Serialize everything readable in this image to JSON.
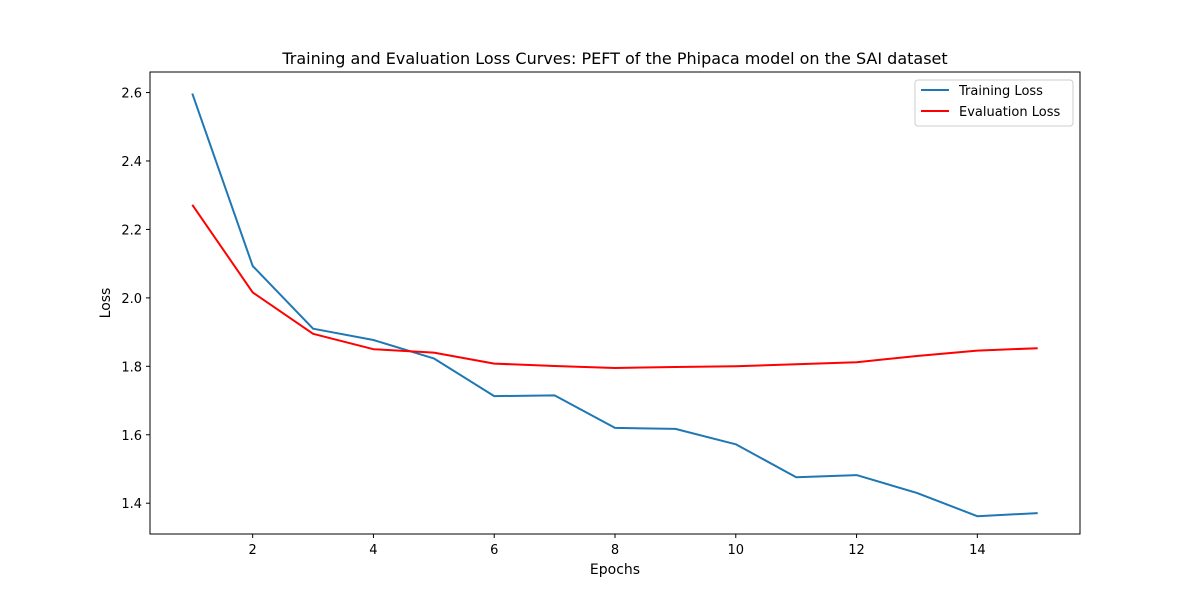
{
  "chart_data": {
    "type": "line",
    "title": "Training and Evaluation Loss Curves: PEFT of the Phipaca model on the SAI dataset",
    "xlabel": "Epochs",
    "ylabel": "Loss",
    "x": [
      1,
      2,
      3,
      4,
      5,
      6,
      7,
      8,
      9,
      10,
      11,
      12,
      13,
      14,
      15
    ],
    "xlim": [
      0.3,
      15.7
    ],
    "ylim": [
      1.31,
      2.66
    ],
    "xticks": [
      2,
      4,
      6,
      8,
      10,
      12,
      14
    ],
    "yticks": [
      1.4,
      1.6,
      1.8,
      2.0,
      2.2,
      2.4,
      2.6
    ],
    "ytick_labels": [
      "1.4",
      "1.6",
      "1.8",
      "2.0",
      "2.2",
      "2.4",
      "2.6"
    ],
    "grid": false,
    "legend_position": "top-right",
    "series": [
      {
        "name": "Training Loss",
        "color": "#1f77b4",
        "values": [
          2.597,
          2.093,
          1.91,
          1.877,
          1.823,
          1.713,
          1.715,
          1.62,
          1.617,
          1.572,
          1.476,
          1.482,
          1.43,
          1.362,
          1.371
        ]
      },
      {
        "name": "Evaluation Loss",
        "color": "#ff0000",
        "values": [
          2.272,
          2.016,
          1.895,
          1.85,
          1.84,
          1.808,
          1.801,
          1.795,
          1.798,
          1.8,
          1.806,
          1.812,
          1.83,
          1.846,
          1.853
        ]
      }
    ]
  }
}
